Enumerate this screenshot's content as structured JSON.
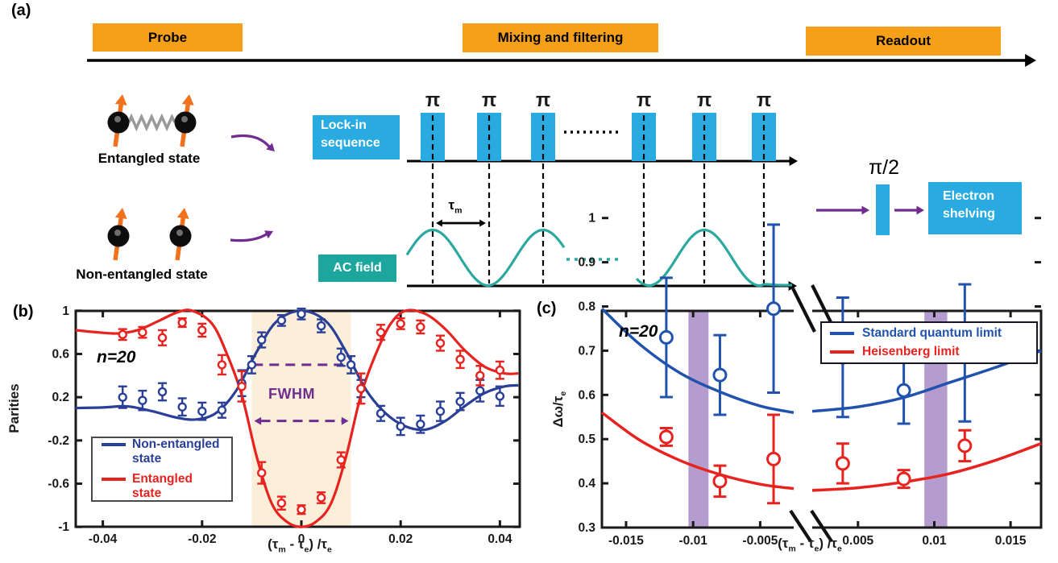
{
  "figure": {
    "panel_labels": [
      "(a)",
      "(b)",
      "(c)"
    ]
  },
  "colors": {
    "stage_orange": "#F6A01A",
    "pulse_blue": "#29ABE2",
    "teal_box": "#1CA69E",
    "teal_wave": "#2BA89F",
    "purple": "#702C91",
    "band_purple": "#B59CCE",
    "shade_cream": "#FBEFDA",
    "blue_b": "#2A3F97",
    "blue_c": "#2153AE",
    "red": "#E8231F",
    "spin_orange": "#F2711C",
    "spring_gray": "#999999",
    "black": "#1a1a1a"
  },
  "diagram": {
    "stages": [
      "Probe",
      "Mixing and filtering",
      "Readout"
    ],
    "entangled_label": "Entangled state",
    "non_entangled_label": "Non-entangled state",
    "lockin_lines": [
      "Lock-in",
      "sequence"
    ],
    "ac_label": "AC field",
    "shelving_lines": [
      "Electron",
      "shelving"
    ],
    "pi": "π",
    "pi_half": "π/2",
    "tau_m": "τ_m",
    "n_pulses": 6
  },
  "chart_data": [
    {
      "id": "panel-b",
      "type": "line",
      "xlabel": "(τ_m - τ_e) /τ_e",
      "ylabel": "Parities",
      "annotation": "n=20",
      "fwhm_label": "FWHM",
      "xlim": [
        -0.0455,
        0.0437
      ],
      "ylim": [
        -1,
        1
      ],
      "xticks": [
        -0.04,
        -0.02,
        0,
        0.02,
        0.04
      ],
      "xtick_labels": [
        "-0.04",
        "-0.02",
        "0",
        "0.02",
        "0.04"
      ],
      "yticks": [
        1,
        0.6,
        0.2,
        -0.2,
        -0.6,
        -1
      ],
      "ytick_labels": [
        "1",
        "0.6",
        "0.2",
        "-0.2",
        "-0.6",
        "-1"
      ],
      "grid": false,
      "shaded_region": [
        -0.01,
        0.01
      ],
      "fwhm_lines": {
        "half_max_y": 0.5,
        "half_max_span": [
          -0.0097,
          0.0103
        ],
        "arrow_y": -0.02,
        "arrow_span": [
          -0.0095,
          0.0095
        ]
      },
      "legend_position": "bottom-left",
      "series": [
        {
          "name": "Non-entangled state",
          "color": "#2A3F97",
          "points": [
            [
              -0.036,
              0.2,
              0.1
            ],
            [
              -0.032,
              0.17,
              0.09
            ],
            [
              -0.028,
              0.25,
              0.08
            ],
            [
              -0.024,
              0.11,
              0.08
            ],
            [
              -0.02,
              0.07,
              0.08
            ],
            [
              -0.016,
              0.08,
              0.07
            ],
            [
              -0.012,
              0.33,
              0.12
            ],
            [
              -0.01,
              0.5,
              0.08
            ],
            [
              -0.008,
              0.73,
              0.07
            ],
            [
              -0.004,
              0.91,
              0.05
            ],
            [
              0,
              0.97,
              0.05
            ],
            [
              0.004,
              0.86,
              0.06
            ],
            [
              0.008,
              0.57,
              0.08
            ],
            [
              0.01,
              0.5,
              0.08
            ],
            [
              0.012,
              0.28,
              0.08
            ],
            [
              0.016,
              0.05,
              0.07
            ],
            [
              0.02,
              -0.07,
              0.08
            ],
            [
              0.024,
              -0.05,
              0.08
            ],
            [
              0.028,
              0.07,
              0.09
            ],
            [
              0.032,
              0.16,
              0.08
            ],
            [
              0.036,
              0.26,
              0.1
            ],
            [
              0.04,
              0.21,
              0.09
            ]
          ],
          "curve": [
            [
              -0.0455,
              0.1
            ],
            [
              -0.04,
              0.105
            ],
            [
              -0.035,
              0.115
            ],
            [
              -0.03,
              0.07
            ],
            [
              -0.025,
              0.01
            ],
            [
              -0.021,
              -0.005
            ],
            [
              -0.017,
              0.06
            ],
            [
              -0.013,
              0.27
            ],
            [
              -0.009,
              0.62
            ],
            [
              -0.005,
              0.9
            ],
            [
              0,
              1.0
            ],
            [
              0.005,
              0.9
            ],
            [
              0.009,
              0.62
            ],
            [
              0.013,
              0.27
            ],
            [
              0.017,
              0.05
            ],
            [
              0.021,
              -0.07
            ],
            [
              0.025,
              -0.1
            ],
            [
              0.029,
              -0.02
            ],
            [
              0.033,
              0.12
            ],
            [
              0.037,
              0.24
            ],
            [
              0.041,
              0.3
            ],
            [
              0.0437,
              0.31
            ]
          ]
        },
        {
          "name": "Entangled state",
          "color": "#E8231F",
          "points": [
            [
              -0.036,
              0.78,
              0.05
            ],
            [
              -0.032,
              0.8,
              0.05
            ],
            [
              -0.028,
              0.75,
              0.07
            ],
            [
              -0.024,
              0.89,
              0.04
            ],
            [
              -0.02,
              0.82,
              0.06
            ],
            [
              -0.016,
              0.5,
              0.09
            ],
            [
              -0.012,
              0.3,
              0.14
            ],
            [
              -0.008,
              -0.5,
              0.1
            ],
            [
              -0.004,
              -0.78,
              0.06
            ],
            [
              0,
              -0.84,
              0.04
            ],
            [
              0.004,
              -0.73,
              0.05
            ],
            [
              0.008,
              -0.38,
              0.07
            ],
            [
              0.012,
              0.28,
              0.14
            ],
            [
              0.016,
              0.8,
              0.07
            ],
            [
              0.02,
              0.88,
              0.05
            ],
            [
              0.024,
              0.85,
              0.06
            ],
            [
              0.028,
              0.7,
              0.07
            ],
            [
              0.032,
              0.55,
              0.08
            ],
            [
              0.036,
              0.4,
              0.09
            ],
            [
              0.04,
              0.45,
              0.08
            ]
          ],
          "curve": [
            [
              -0.0455,
              0.82
            ],
            [
              -0.041,
              0.8
            ],
            [
              -0.037,
              0.79
            ],
            [
              -0.033,
              0.82
            ],
            [
              -0.029,
              0.9
            ],
            [
              -0.025,
              0.985
            ],
            [
              -0.022,
              1.0
            ],
            [
              -0.018,
              0.88
            ],
            [
              -0.015,
              0.6
            ],
            [
              -0.012,
              0.22
            ],
            [
              -0.009,
              -0.35
            ],
            [
              -0.006,
              -0.78
            ],
            [
              -0.003,
              -0.95
            ],
            [
              0,
              -1.0
            ],
            [
              0.003,
              -0.95
            ],
            [
              0.006,
              -0.78
            ],
            [
              0.009,
              -0.35
            ],
            [
              0.012,
              0.22
            ],
            [
              0.015,
              0.6
            ],
            [
              0.018,
              0.88
            ],
            [
              0.021,
              1.0
            ],
            [
              0.025,
              0.97
            ],
            [
              0.029,
              0.83
            ],
            [
              0.033,
              0.63
            ],
            [
              0.037,
              0.48
            ],
            [
              0.041,
              0.42
            ],
            [
              0.0437,
              0.42
            ]
          ]
        }
      ]
    },
    {
      "id": "panel-c",
      "type": "line",
      "xlabel": "(τ_m - τ_e) /τ_e",
      "ylabel": "Δω/τ_e",
      "annotation": "n=20",
      "ylim": [
        0.3,
        1
      ],
      "yticks": [
        1,
        0.9,
        0.8,
        0.7,
        0.6,
        0.5,
        0.4,
        0.3
      ],
      "ytick_labels": [
        "1",
        "0.9",
        "0.8",
        "0.7",
        "0.6",
        "0.5",
        "0.4",
        "0.3"
      ],
      "grid": false,
      "axis_break": true,
      "band_half_width": 0.00075,
      "segments": [
        {
          "xlim": [
            -0.0168,
            -0.0025
          ],
          "xticks": [
            -0.015,
            -0.01,
            -0.005
          ],
          "xtick_labels": [
            "-0.015",
            "-0.01",
            "-0.005"
          ],
          "band_center": -0.0096
        },
        {
          "xlim": [
            0.002,
            0.017
          ],
          "xticks": [
            0.005,
            0.01,
            0.015
          ],
          "xtick_labels": [
            "0.005",
            "0.01",
            "0.015"
          ],
          "band_center": 0.0101
        }
      ],
      "legend_position": "top-right",
      "series": [
        {
          "name": "Standard quantum limit",
          "color": "#2153AE",
          "points": [
            [
              -0.012,
              0.73,
              0.135
            ],
            [
              -0.008,
              0.645,
              0.09
            ],
            [
              -0.004,
              0.795,
              0.19
            ],
            [
              0.004,
              0.685,
              0.135
            ],
            [
              0.008,
              0.61,
              0.075
            ],
            [
              0.012,
              0.695,
              0.155
            ]
          ],
          "curve_left": [
            [
              -0.0168,
              0.795
            ],
            [
              -0.014,
              0.715
            ],
            [
              -0.011,
              0.65
            ],
            [
              -0.008,
              0.607
            ],
            [
              -0.005,
              0.575
            ],
            [
              -0.0025,
              0.56
            ]
          ],
          "curve_right": [
            [
              0.002,
              0.563
            ],
            [
              0.005,
              0.573
            ],
            [
              0.008,
              0.594
            ],
            [
              0.011,
              0.628
            ],
            [
              0.014,
              0.662
            ],
            [
              0.017,
              0.7
            ]
          ]
        },
        {
          "name": "Heisenberg limit",
          "color": "#E8231F",
          "points": [
            [
              -0.012,
              0.505,
              0.02
            ],
            [
              -0.008,
              0.405,
              0.035
            ],
            [
              -0.004,
              0.455,
              0.1
            ],
            [
              0.004,
              0.445,
              0.045
            ],
            [
              0.008,
              0.41,
              0.02
            ],
            [
              0.012,
              0.485,
              0.035
            ]
          ],
          "curve_left": [
            [
              -0.0168,
              0.56
            ],
            [
              -0.014,
              0.498
            ],
            [
              -0.011,
              0.452
            ],
            [
              -0.008,
              0.42
            ],
            [
              -0.005,
              0.398
            ],
            [
              -0.0025,
              0.388
            ]
          ],
          "curve_right": [
            [
              0.002,
              0.384
            ],
            [
              0.005,
              0.39
            ],
            [
              0.008,
              0.403
            ],
            [
              0.011,
              0.422
            ],
            [
              0.014,
              0.452
            ],
            [
              0.017,
              0.49
            ]
          ]
        }
      ]
    }
  ]
}
